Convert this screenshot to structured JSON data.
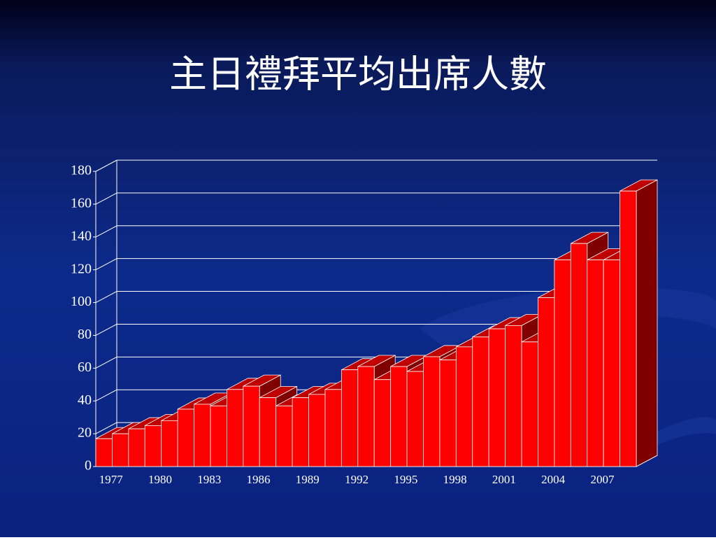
{
  "chart_data": {
    "type": "bar3d",
    "title": "主日禮拜平均出席人數",
    "categories": [
      "1977",
      null,
      null,
      "1980",
      null,
      null,
      "1983",
      null,
      null,
      "1986",
      null,
      null,
      "1989",
      null,
      null,
      "1992",
      null,
      null,
      "1995",
      null,
      null,
      "1998",
      null,
      null,
      "2001",
      null,
      null,
      "2004",
      null,
      null,
      "2007",
      null,
      null
    ],
    "values": [
      17,
      20,
      23,
      25,
      28,
      35,
      38,
      37,
      47,
      49,
      42,
      37,
      42,
      44,
      47,
      59,
      61,
      53,
      61,
      58,
      67,
      65,
      73,
      79,
      84,
      86,
      76,
      103,
      126,
      136,
      126,
      126,
      168
    ],
    "color": "#ff0000",
    "ylim": [
      0,
      180
    ],
    "yticks": [
      0,
      20,
      40,
      60,
      80,
      100,
      120,
      140,
      160,
      180
    ],
    "grid": true
  }
}
